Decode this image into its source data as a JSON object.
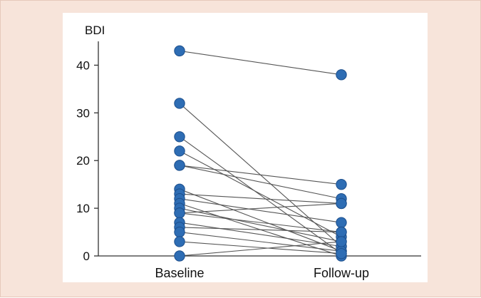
{
  "chart_data": {
    "type": "line",
    "title": "",
    "xlabel": "",
    "ylabel": "BDI",
    "categories": [
      "Baseline",
      "Follow-up"
    ],
    "ylim": [
      0,
      45
    ],
    "yticks": [
      0,
      10,
      20,
      30,
      40
    ],
    "grid": false,
    "legend": "none",
    "marker_color": "#2e6db4",
    "marker_edge_color": "#1d4f8c",
    "line_color": "#555555",
    "axis_color": "#333333",
    "pairs": [
      {
        "baseline": 43,
        "followup": 38
      },
      {
        "baseline": 32,
        "followup": 2
      },
      {
        "baseline": 25,
        "followup": 0.5
      },
      {
        "baseline": 22,
        "followup": 4
      },
      {
        "baseline": 19,
        "followup": 15
      },
      {
        "baseline": 19,
        "followup": 12
      },
      {
        "baseline": 14,
        "followup": 1
      },
      {
        "baseline": 13,
        "followup": 11
      },
      {
        "baseline": 12,
        "followup": 7
      },
      {
        "baseline": 11,
        "followup": 0
      },
      {
        "baseline": 10,
        "followup": 3
      },
      {
        "baseline": 9,
        "followup": 5
      },
      {
        "baseline": 9,
        "followup": 11
      },
      {
        "baseline": 7,
        "followup": 2
      },
      {
        "baseline": 6,
        "followup": 5
      },
      {
        "baseline": 5,
        "followup": 1
      },
      {
        "baseline": 3,
        "followup": 0.5
      },
      {
        "baseline": 0,
        "followup": 3
      }
    ]
  }
}
